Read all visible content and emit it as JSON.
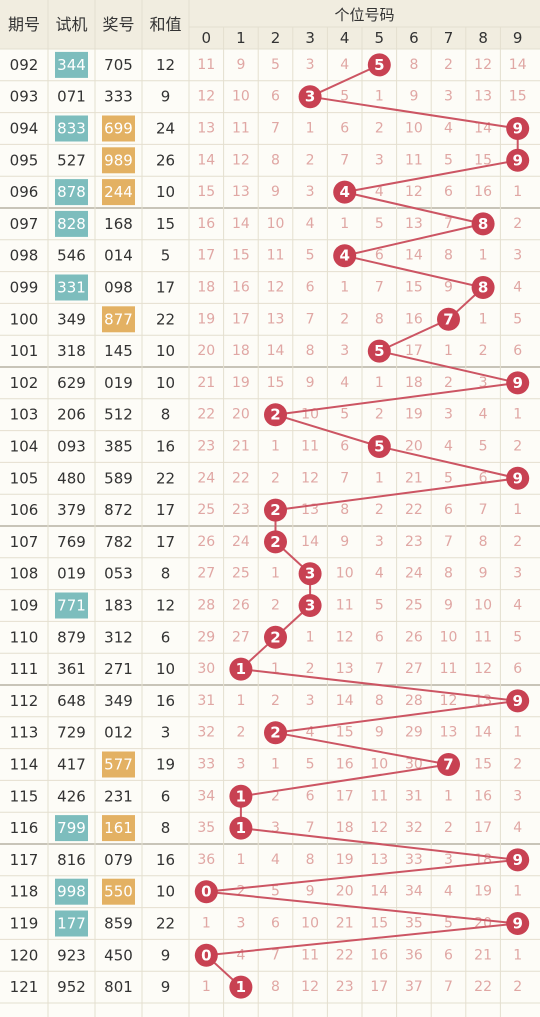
{
  "headers": {
    "period": "期号",
    "trial": "试机",
    "draw": "奖号",
    "sum": "和值",
    "units_group": "个位号码"
  },
  "colors": {
    "background": "#fdfcf7",
    "header_bg": "#f1ede0",
    "grid": "#e4dfcf",
    "group_line": "#b7b2a3",
    "text": "#333333",
    "miss_text": "#e0a7a4",
    "ball": "#c84152",
    "line": "#cc5563",
    "trial_highlight": "#7dbdbd",
    "draw_highlight": "#e3b163"
  },
  "chart_data": {
    "type": "table",
    "digits": [
      0,
      1,
      2,
      3,
      4,
      5,
      6,
      7,
      8,
      9
    ],
    "rows": [
      {
        "period": "092",
        "trial": "344",
        "trial_hl": true,
        "draw": "705",
        "draw_hl": false,
        "sum": "12",
        "hit": 5,
        "miss": [
          11,
          9,
          5,
          3,
          4,
          null,
          8,
          2,
          12,
          14
        ]
      },
      {
        "period": "093",
        "trial": "071",
        "trial_hl": false,
        "draw": "333",
        "draw_hl": false,
        "sum": "9",
        "hit": 3,
        "miss": [
          12,
          10,
          6,
          null,
          5,
          1,
          9,
          3,
          13,
          15
        ]
      },
      {
        "period": "094",
        "trial": "833",
        "trial_hl": true,
        "draw": "699",
        "draw_hl": true,
        "sum": "24",
        "hit": 9,
        "miss": [
          13,
          11,
          7,
          1,
          6,
          2,
          10,
          4,
          14,
          null
        ]
      },
      {
        "period": "095",
        "trial": "527",
        "trial_hl": false,
        "draw": "989",
        "draw_hl": true,
        "sum": "26",
        "hit": 9,
        "miss": [
          14,
          12,
          8,
          2,
          7,
          3,
          11,
          5,
          15,
          null
        ]
      },
      {
        "period": "096",
        "trial": "878",
        "trial_hl": true,
        "draw": "244",
        "draw_hl": true,
        "sum": "10",
        "hit": 4,
        "miss": [
          15,
          13,
          9,
          3,
          null,
          4,
          12,
          6,
          16,
          1
        ]
      },
      {
        "period": "097",
        "trial": "828",
        "trial_hl": true,
        "draw": "168",
        "draw_hl": false,
        "sum": "15",
        "hit": 8,
        "miss": [
          16,
          14,
          10,
          4,
          1,
          5,
          13,
          7,
          null,
          2
        ]
      },
      {
        "period": "098",
        "trial": "546",
        "trial_hl": false,
        "draw": "014",
        "draw_hl": false,
        "sum": "5",
        "hit": 4,
        "miss": [
          17,
          15,
          11,
          5,
          null,
          6,
          14,
          8,
          1,
          3
        ]
      },
      {
        "period": "099",
        "trial": "331",
        "trial_hl": true,
        "draw": "098",
        "draw_hl": false,
        "sum": "17",
        "hit": 8,
        "miss": [
          18,
          16,
          12,
          6,
          1,
          7,
          15,
          9,
          null,
          4
        ]
      },
      {
        "period": "100",
        "trial": "349",
        "trial_hl": false,
        "draw": "877",
        "draw_hl": true,
        "sum": "22",
        "hit": 7,
        "miss": [
          19,
          17,
          13,
          7,
          2,
          8,
          16,
          null,
          1,
          5
        ]
      },
      {
        "period": "101",
        "trial": "318",
        "trial_hl": false,
        "draw": "145",
        "draw_hl": false,
        "sum": "10",
        "hit": 5,
        "miss": [
          20,
          18,
          14,
          8,
          3,
          null,
          17,
          1,
          2,
          6
        ]
      },
      {
        "period": "102",
        "trial": "629",
        "trial_hl": false,
        "draw": "019",
        "draw_hl": false,
        "sum": "10",
        "hit": 9,
        "miss": [
          21,
          19,
          15,
          9,
          4,
          1,
          18,
          2,
          3,
          null
        ]
      },
      {
        "period": "103",
        "trial": "206",
        "trial_hl": false,
        "draw": "512",
        "draw_hl": false,
        "sum": "8",
        "hit": 2,
        "miss": [
          22,
          20,
          null,
          10,
          5,
          2,
          19,
          3,
          4,
          1
        ]
      },
      {
        "period": "104",
        "trial": "093",
        "trial_hl": false,
        "draw": "385",
        "draw_hl": false,
        "sum": "16",
        "hit": 5,
        "miss": [
          23,
          21,
          1,
          11,
          6,
          null,
          20,
          4,
          5,
          2
        ]
      },
      {
        "period": "105",
        "trial": "480",
        "trial_hl": false,
        "draw": "589",
        "draw_hl": false,
        "sum": "22",
        "hit": 9,
        "miss": [
          24,
          22,
          2,
          12,
          7,
          1,
          21,
          5,
          6,
          null
        ]
      },
      {
        "period": "106",
        "trial": "379",
        "trial_hl": false,
        "draw": "872",
        "draw_hl": false,
        "sum": "17",
        "hit": 2,
        "miss": [
          25,
          23,
          null,
          13,
          8,
          2,
          22,
          6,
          7,
          1
        ]
      },
      {
        "period": "107",
        "trial": "769",
        "trial_hl": false,
        "draw": "782",
        "draw_hl": false,
        "sum": "17",
        "hit": 2,
        "miss": [
          26,
          24,
          null,
          14,
          9,
          3,
          23,
          7,
          8,
          2
        ]
      },
      {
        "period": "108",
        "trial": "019",
        "trial_hl": false,
        "draw": "053",
        "draw_hl": false,
        "sum": "8",
        "hit": 3,
        "miss": [
          27,
          25,
          1,
          null,
          10,
          4,
          24,
          8,
          9,
          3
        ]
      },
      {
        "period": "109",
        "trial": "771",
        "trial_hl": true,
        "draw": "183",
        "draw_hl": false,
        "sum": "12",
        "hit": 3,
        "miss": [
          28,
          26,
          2,
          null,
          11,
          5,
          25,
          9,
          10,
          4
        ]
      },
      {
        "period": "110",
        "trial": "879",
        "trial_hl": false,
        "draw": "312",
        "draw_hl": false,
        "sum": "6",
        "hit": 2,
        "miss": [
          29,
          27,
          null,
          1,
          12,
          6,
          26,
          10,
          11,
          5
        ]
      },
      {
        "period": "111",
        "trial": "361",
        "trial_hl": false,
        "draw": "271",
        "draw_hl": false,
        "sum": "10",
        "hit": 1,
        "miss": [
          30,
          null,
          1,
          2,
          13,
          7,
          27,
          11,
          12,
          6
        ]
      },
      {
        "period": "112",
        "trial": "648",
        "trial_hl": false,
        "draw": "349",
        "draw_hl": false,
        "sum": "16",
        "hit": 9,
        "miss": [
          31,
          1,
          2,
          3,
          14,
          8,
          28,
          12,
          13,
          null
        ]
      },
      {
        "period": "113",
        "trial": "729",
        "trial_hl": false,
        "draw": "012",
        "draw_hl": false,
        "sum": "3",
        "hit": 2,
        "miss": [
          32,
          2,
          null,
          4,
          15,
          9,
          29,
          13,
          14,
          1
        ]
      },
      {
        "period": "114",
        "trial": "417",
        "trial_hl": false,
        "draw": "577",
        "draw_hl": true,
        "sum": "19",
        "hit": 7,
        "miss": [
          33,
          3,
          1,
          5,
          16,
          10,
          30,
          null,
          15,
          2
        ]
      },
      {
        "period": "115",
        "trial": "426",
        "trial_hl": false,
        "draw": "231",
        "draw_hl": false,
        "sum": "6",
        "hit": 1,
        "miss": [
          34,
          null,
          2,
          6,
          17,
          11,
          31,
          1,
          16,
          3
        ]
      },
      {
        "period": "116",
        "trial": "799",
        "trial_hl": true,
        "draw": "161",
        "draw_hl": true,
        "sum": "8",
        "hit": 1,
        "miss": [
          35,
          null,
          3,
          7,
          18,
          12,
          32,
          2,
          17,
          4
        ]
      },
      {
        "period": "117",
        "trial": "816",
        "trial_hl": false,
        "draw": "079",
        "draw_hl": false,
        "sum": "16",
        "hit": 9,
        "miss": [
          36,
          1,
          4,
          8,
          19,
          13,
          33,
          3,
          18,
          null
        ]
      },
      {
        "period": "118",
        "trial": "998",
        "trial_hl": true,
        "draw": "550",
        "draw_hl": true,
        "sum": "10",
        "hit": 0,
        "miss": [
          null,
          2,
          5,
          9,
          20,
          14,
          34,
          4,
          19,
          1
        ]
      },
      {
        "period": "119",
        "trial": "177",
        "trial_hl": true,
        "draw": "859",
        "draw_hl": false,
        "sum": "22",
        "hit": 9,
        "miss": [
          1,
          3,
          6,
          10,
          21,
          15,
          35,
          5,
          20,
          null
        ]
      },
      {
        "period": "120",
        "trial": "923",
        "trial_hl": false,
        "draw": "450",
        "draw_hl": false,
        "sum": "9",
        "hit": 0,
        "miss": [
          null,
          4,
          7,
          11,
          22,
          16,
          36,
          6,
          21,
          1
        ]
      },
      {
        "period": "121",
        "trial": "952",
        "trial_hl": false,
        "draw": "801",
        "draw_hl": false,
        "sum": "9",
        "hit": 1,
        "miss": [
          1,
          null,
          8,
          12,
          23,
          17,
          37,
          7,
          22,
          2
        ]
      }
    ]
  }
}
